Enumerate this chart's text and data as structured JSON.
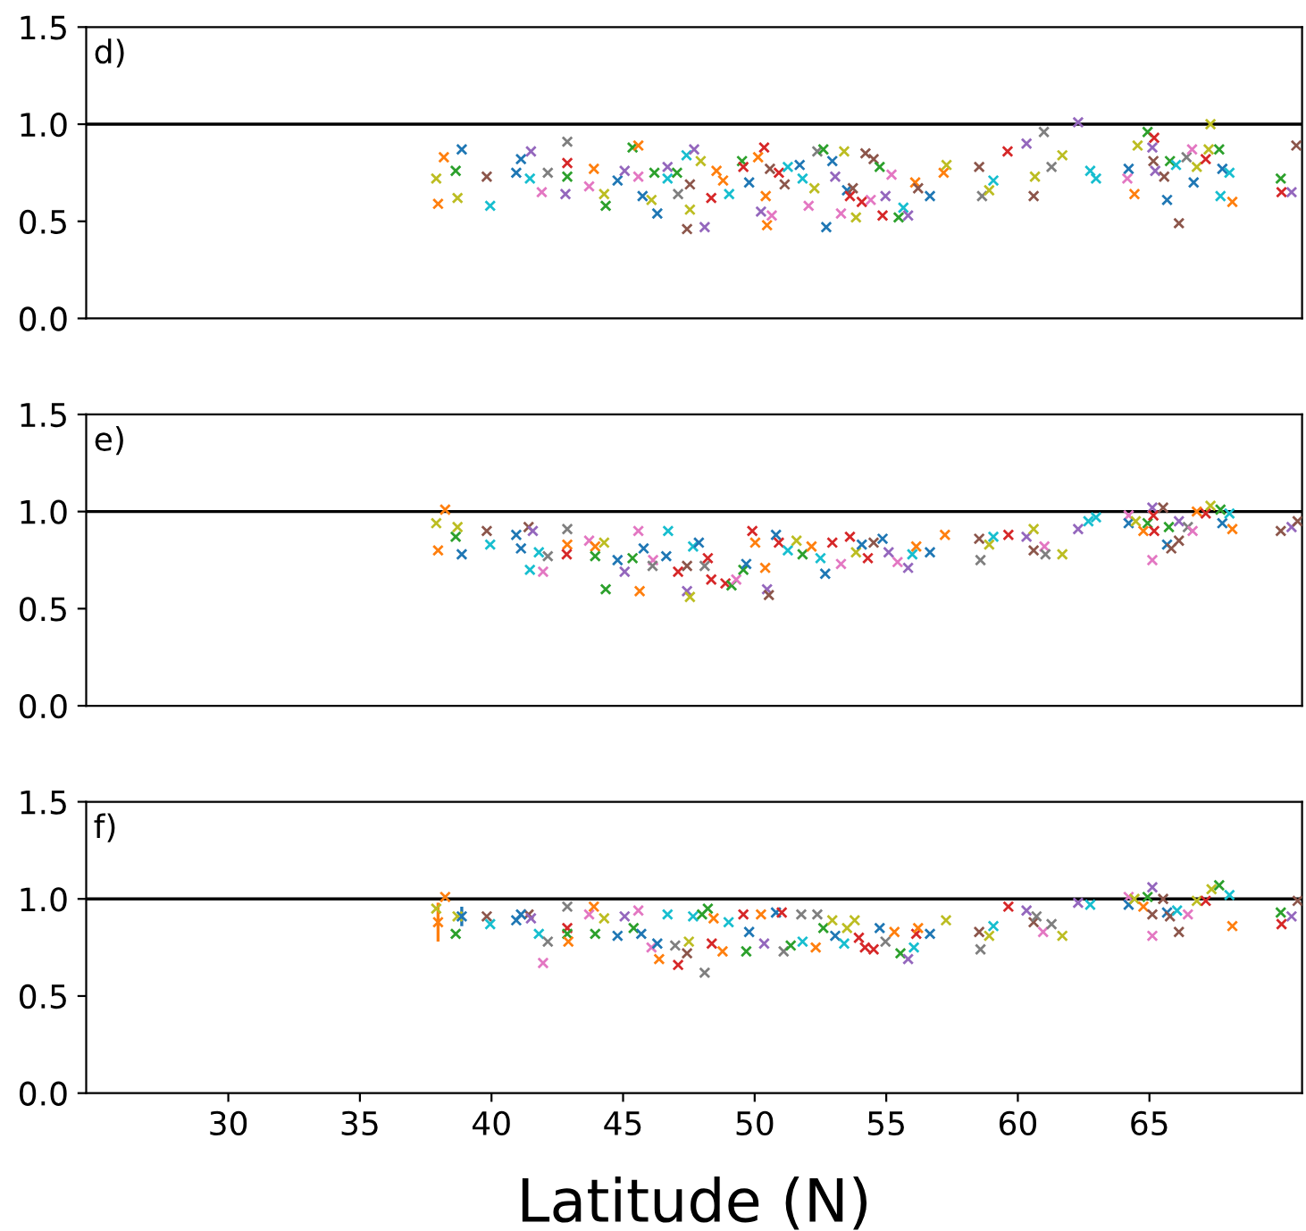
{
  "chart_data": [
    {
      "type": "scatter",
      "annotations": [
        "d)"
      ],
      "xlim": [
        24.6,
        70.8
      ],
      "ylim": [
        0,
        1.5
      ],
      "xticks": [
        30,
        35,
        40,
        45,
        50,
        55,
        60,
        65
      ],
      "yticks": [
        {
          "value": 0,
          "label": "0.0"
        },
        {
          "value": 0.5,
          "label": "0.5"
        },
        {
          "value": 1,
          "label": "1.0"
        },
        {
          "value": 1.5,
          "label": "1.5"
        }
      ],
      "tick_labels": "y",
      "marker": "cross",
      "grid": false,
      "legend": false,
      "ref_lines": [
        {
          "axis": "y",
          "value": 1,
          "color": "#000000"
        }
      ],
      "series": [
        {
          "x": [
            38.19,
            37.97,
            37.9,
            38.87,
            38.64,
            38.71,
            39.82,
            39.95,
            40.94,
            41.12,
            41.5,
            41.46,
            41.91,
            42.14,
            42.88,
            42.88,
            42.88,
            42.81,
            43.71,
            43.89,
            44.28,
            44.34,
            44.79,
            45.06,
            45.36,
            45.58,
            45.58,
            45.74,
            46.08,
            46.3,
            46.19,
            46.69,
            46.69,
            47.05,
            47.41,
            47.7,
            47.95,
            47.43,
            48.1,
            47.54,
            47.09,
            47.54,
            48.35,
            48.55,
            48.8,
            49.03,
            49.52,
            49.57,
            49.79,
            50.13,
            50.36,
            50.42,
            50.24,
            50.65,
            50.47,
            50.58,
            50.92,
            51.14,
            51.26,
            51.71,
            51.82,
            52.05,
            52.27,
            52.38,
            52.61,
            52.72,
            52.95,
            53.06,
            53.4,
            53.28,
            53.51,
            53.62,
            53.73,
            53.85,
            54.07,
            54.21,
            54.52,
            54.41,
            54.75,
            54.86,
            54.97,
            55.2,
            55.47,
            55.65,
            55.83,
            56.1,
            56.21,
            56.66,
            57.18,
            57.29,
            58.53,
            58.64,
            58.91,
            59.07,
            59.61,
            60.33,
            60.65,
            60.6,
            60.99,
            61.28,
            61.69,
            62.29,
            62.75,
            62.97,
            64.21,
            64.16,
            64.43,
            64.55,
            64.93,
            65.18,
            65.11,
            65.15,
            65.22,
            65.56,
            65.67,
            65.78,
            66.01,
            66.12,
            66.41,
            66.62,
            66.68,
            66.8,
            67.14,
            67.25,
            67.32,
            67.65,
            67.77,
            67.7,
            68.04,
            68.15,
            69.99,
            70.02,
            70.4,
            70.58
          ],
          "values": [
            0.83,
            0.59,
            0.72,
            0.87,
            0.76,
            0.62,
            0.73,
            0.58,
            0.75,
            0.82,
            0.86,
            0.72,
            0.65,
            0.75,
            0.91,
            0.8,
            0.73,
            0.64,
            0.68,
            0.77,
            0.64,
            0.58,
            0.71,
            0.76,
            0.88,
            0.89,
            0.73,
            0.63,
            0.61,
            0.54,
            0.75,
            0.78,
            0.72,
            0.75,
            0.84,
            0.87,
            0.81,
            0.46,
            0.47,
            0.56,
            0.64,
            0.69,
            0.62,
            0.76,
            0.71,
            0.64,
            0.81,
            0.78,
            0.7,
            0.83,
            0.88,
            0.63,
            0.55,
            0.53,
            0.48,
            0.77,
            0.75,
            0.69,
            0.78,
            0.79,
            0.72,
            0.58,
            0.67,
            0.86,
            0.87,
            0.47,
            0.81,
            0.73,
            0.86,
            0.54,
            0.66,
            0.63,
            0.67,
            0.52,
            0.6,
            0.85,
            0.82,
            0.61,
            0.78,
            0.53,
            0.63,
            0.74,
            0.52,
            0.57,
            0.53,
            0.7,
            0.67,
            0.63,
            0.75,
            0.79,
            0.78,
            0.63,
            0.66,
            0.71,
            0.86,
            0.9,
            0.73,
            0.63,
            0.96,
            0.78,
            0.84,
            1.01,
            0.76,
            0.72,
            0.77,
            0.72,
            0.64,
            0.89,
            0.96,
            0.93,
            0.88,
            0.81,
            0.76,
            0.73,
            0.61,
            0.81,
            0.79,
            0.49,
            0.83,
            0.87,
            0.7,
            0.78,
            0.82,
            0.87,
            1.0,
            0.87,
            0.77,
            0.63,
            0.75,
            0.6,
            0.72,
            0.65,
            0.65,
            0.89
          ],
          "colors": [
            "#ff7f0e",
            "#ff7f0e",
            "#bcbd22",
            "#1f77b4",
            "#2ca02c",
            "#bcbd22",
            "#8c564b",
            "#17becf",
            "#1f77b4",
            "#1f77b4",
            "#9467bd",
            "#17becf",
            "#e377c2",
            "#7f7f7f",
            "#7f7f7f",
            "#d62728",
            "#2ca02c",
            "#9467bd",
            "#e377c2",
            "#ff7f0e",
            "#bcbd22",
            "#2ca02c",
            "#1f77b4",
            "#9467bd",
            "#2ca02c",
            "#ff7f0e",
            "#e377c2",
            "#1f77b4",
            "#bcbd22",
            "#1f77b4",
            "#2ca02c",
            "#9467bd",
            "#17becf",
            "#2ca02c",
            "#17becf",
            "#9467bd",
            "#bcbd22",
            "#8c564b",
            "#9467bd",
            "#bcbd22",
            "#7f7f7f",
            "#8c564b",
            "#d62728",
            "#ff7f0e",
            "#ff7f0e",
            "#17becf",
            "#2ca02c",
            "#d62728",
            "#1f77b4",
            "#ff7f0e",
            "#d62728",
            "#ff7f0e",
            "#9467bd",
            "#e377c2",
            "#ff7f0e",
            "#8c564b",
            "#d62728",
            "#8c564b",
            "#17becf",
            "#1f77b4",
            "#17becf",
            "#e377c2",
            "#bcbd22",
            "#7f7f7f",
            "#2ca02c",
            "#1f77b4",
            "#1f77b4",
            "#9467bd",
            "#bcbd22",
            "#e377c2",
            "#1f77b4",
            "#d62728",
            "#8c564b",
            "#bcbd22",
            "#d62728",
            "#8c564b",
            "#8c564b",
            "#e377c2",
            "#2ca02c",
            "#d62728",
            "#9467bd",
            "#e377c2",
            "#2ca02c",
            "#17becf",
            "#9467bd",
            "#ff7f0e",
            "#8c564b",
            "#1f77b4",
            "#ff7f0e",
            "#bcbd22",
            "#8c564b",
            "#7f7f7f",
            "#bcbd22",
            "#17becf",
            "#d62728",
            "#9467bd",
            "#bcbd22",
            "#8c564b",
            "#7f7f7f",
            "#7f7f7f",
            "#bcbd22",
            "#9467bd",
            "#17becf",
            "#17becf",
            "#1f77b4",
            "#e377c2",
            "#ff7f0e",
            "#bcbd22",
            "#2ca02c",
            "#d62728",
            "#9467bd",
            "#8c564b",
            "#9467bd",
            "#8c564b",
            "#1f77b4",
            "#2ca02c",
            "#17becf",
            "#8c564b",
            "#7f7f7f",
            "#e377c2",
            "#1f77b4",
            "#bcbd22",
            "#d62728",
            "#bcbd22",
            "#bcbd22",
            "#2ca02c",
            "#1f77b4",
            "#17becf",
            "#17becf",
            "#ff7f0e",
            "#2ca02c",
            "#d62728",
            "#9467bd",
            "#8c564b"
          ]
        }
      ]
    },
    {
      "type": "scatter",
      "annotations": [
        "e)"
      ],
      "xlim": [
        24.6,
        70.8
      ],
      "ylim": [
        0,
        1.5
      ],
      "xticks": [
        30,
        35,
        40,
        45,
        50,
        55,
        60,
        65
      ],
      "yticks": [
        {
          "value": 0,
          "label": "0.0"
        },
        {
          "value": 0.5,
          "label": "0.5"
        },
        {
          "value": 1,
          "label": "1.0"
        },
        {
          "value": 1.5,
          "label": "1.5"
        }
      ],
      "tick_labels": "y",
      "marker": "cross",
      "grid": false,
      "legend": false,
      "ref_lines": [
        {
          "axis": "y",
          "value": 1,
          "color": "#000000"
        }
      ],
      "series": [
        {
          "x": [
            38.24,
            37.9,
            37.97,
            38.71,
            38.64,
            38.87,
            39.82,
            39.95,
            40.94,
            41.12,
            41.41,
            41.57,
            41.8,
            42.14,
            41.46,
            41.96,
            42.88,
            42.88,
            42.86,
            43.71,
            43.94,
            44.28,
            43.94,
            44.34,
            44.79,
            45.06,
            45.36,
            45.58,
            45.63,
            45.78,
            46.14,
            46.12,
            46.71,
            46.64,
            47.09,
            47.43,
            47.43,
            47.54,
            47.66,
            47.88,
            48.1,
            48.22,
            48.35,
            48.89,
            49.12,
            49.3,
            49.57,
            49.68,
            49.91,
            50.02,
            50.4,
            50.47,
            50.54,
            50.81,
            50.92,
            51.26,
            51.59,
            51.82,
            52.16,
            52.5,
            52.68,
            52.95,
            53.28,
            53.62,
            53.85,
            54.07,
            54.3,
            54.52,
            54.86,
            55.09,
            55.43,
            55.83,
            55.99,
            56.14,
            56.66,
            57.23,
            58.53,
            58.58,
            58.91,
            59.07,
            59.64,
            60.33,
            60.6,
            60.6,
            61.01,
            61.05,
            61.69,
            62.29,
            62.68,
            62.97,
            64.21,
            64.21,
            64.48,
            64.77,
            64.93,
            65.11,
            65.15,
            65.18,
            65.11,
            65.52,
            65.67,
            65.83,
            65.74,
            66.12,
            66.12,
            66.46,
            66.64,
            66.8,
            67.14,
            67.32,
            67.7,
            67.77,
            68.04,
            68.15,
            69.99,
            70.4,
            70.63
          ],
          "values": [
            1.01,
            0.94,
            0.8,
            0.92,
            0.87,
            0.78,
            0.9,
            0.83,
            0.88,
            0.81,
            0.92,
            0.9,
            0.79,
            0.77,
            0.7,
            0.69,
            0.91,
            0.83,
            0.78,
            0.85,
            0.82,
            0.84,
            0.77,
            0.6,
            0.75,
            0.69,
            0.76,
            0.9,
            0.59,
            0.81,
            0.75,
            0.72,
            0.9,
            0.77,
            0.69,
            0.72,
            0.59,
            0.56,
            0.82,
            0.84,
            0.72,
            0.76,
            0.65,
            0.63,
            0.62,
            0.65,
            0.7,
            0.73,
            0.9,
            0.84,
            0.71,
            0.6,
            0.57,
            0.88,
            0.84,
            0.8,
            0.85,
            0.78,
            0.82,
            0.76,
            0.68,
            0.84,
            0.73,
            0.87,
            0.79,
            0.83,
            0.76,
            0.84,
            0.86,
            0.79,
            0.74,
            0.71,
            0.78,
            0.82,
            0.79,
            0.88,
            0.86,
            0.75,
            0.83,
            0.87,
            0.88,
            0.87,
            0.91,
            0.8,
            0.82,
            0.78,
            0.78,
            0.91,
            0.95,
            0.97,
            0.98,
            0.94,
            0.95,
            0.9,
            0.94,
            1.02,
            0.98,
            0.9,
            0.75,
            1.02,
            0.83,
            0.81,
            0.92,
            0.95,
            0.85,
            0.92,
            0.9,
            1.0,
            0.99,
            1.03,
            1.01,
            0.94,
            0.99,
            0.91,
            0.9,
            0.92,
            0.95
          ],
          "colors": [
            "#ff7f0e",
            "#bcbd22",
            "#ff7f0e",
            "#bcbd22",
            "#2ca02c",
            "#1f77b4",
            "#8c564b",
            "#17becf",
            "#1f77b4",
            "#1f77b4",
            "#8c564b",
            "#9467bd",
            "#17becf",
            "#7f7f7f",
            "#17becf",
            "#e377c2",
            "#7f7f7f",
            "#ff7f0e",
            "#d62728",
            "#e377c2",
            "#ff7f0e",
            "#bcbd22",
            "#2ca02c",
            "#2ca02c",
            "#1f77b4",
            "#9467bd",
            "#2ca02c",
            "#e377c2",
            "#ff7f0e",
            "#1f77b4",
            "#e377c2",
            "#7f7f7f",
            "#17becf",
            "#1f77b4",
            "#d62728",
            "#8c564b",
            "#9467bd",
            "#bcbd22",
            "#17becf",
            "#1f77b4",
            "#7f7f7f",
            "#d62728",
            "#d62728",
            "#d62728",
            "#2ca02c",
            "#e377c2",
            "#2ca02c",
            "#1f77b4",
            "#d62728",
            "#ff7f0e",
            "#ff7f0e",
            "#9467bd",
            "#8c564b",
            "#1f77b4",
            "#d62728",
            "#17becf",
            "#bcbd22",
            "#2ca02c",
            "#ff7f0e",
            "#17becf",
            "#1f77b4",
            "#d62728",
            "#e377c2",
            "#d62728",
            "#bcbd22",
            "#1f77b4",
            "#d62728",
            "#8c564b",
            "#1f77b4",
            "#9467bd",
            "#e377c2",
            "#9467bd",
            "#17becf",
            "#ff7f0e",
            "#1f77b4",
            "#ff7f0e",
            "#8c564b",
            "#7f7f7f",
            "#bcbd22",
            "#17becf",
            "#d62728",
            "#9467bd",
            "#bcbd22",
            "#8c564b",
            "#e377c2",
            "#7f7f7f",
            "#bcbd22",
            "#9467bd",
            "#17becf",
            "#17becf",
            "#e377c2",
            "#1f77b4",
            "#bcbd22",
            "#ff7f0e",
            "#2ca02c",
            "#9467bd",
            "#d62728",
            "#d62728",
            "#e377c2",
            "#8c564b",
            "#1f77b4",
            "#8c564b",
            "#2ca02c",
            "#9467bd",
            "#8c564b",
            "#7f7f7f",
            "#e377c2",
            "#ff7f0e",
            "#d62728",
            "#bcbd22",
            "#2ca02c",
            "#1f77b4",
            "#17becf",
            "#ff7f0e",
            "#8c564b",
            "#9467bd",
            "#8c564b"
          ]
        }
      ]
    },
    {
      "type": "scatter",
      "xlabel": "Latitude (N)",
      "annotations": [
        "f)"
      ],
      "xlim": [
        24.6,
        70.8
      ],
      "ylim": [
        0,
        1.5
      ],
      "xticks": [
        30,
        35,
        40,
        45,
        50,
        55,
        60,
        65
      ],
      "yticks": [
        {
          "value": 0,
          "label": "0.0"
        },
        {
          "value": 0.5,
          "label": "0.5"
        },
        {
          "value": 1,
          "label": "1.0"
        },
        {
          "value": 1.5,
          "label": "1.5"
        }
      ],
      "marker": "cross",
      "grid": false,
      "legend": false,
      "ref_lines": [
        {
          "axis": "y",
          "value": 1,
          "color": "#000000"
        }
      ],
      "series": [
        {
          "x": [
            38.24,
            37.9,
            37.97,
            38.71,
            38.87,
            38.64,
            39.82,
            39.95,
            40.94,
            41.41,
            41.12,
            41.5,
            41.8,
            42.14,
            41.96,
            42.88,
            42.88,
            42.88,
            42.92,
            43.71,
            43.89,
            44.28,
            43.94,
            44.79,
            45.06,
            45.4,
            45.58,
            45.69,
            46.08,
            46.3,
            46.37,
            46.69,
            46.98,
            47.09,
            47.43,
            47.5,
            47.66,
            48.0,
            48.22,
            48.1,
            48.44,
            48.37,
            48.78,
            49.01,
            49.57,
            49.68,
            49.79,
            50.24,
            50.36,
            50.81,
            51.03,
            51.1,
            51.37,
            51.77,
            51.82,
            52.32,
            52.38,
            52.61,
            52.95,
            53.06,
            53.4,
            53.51,
            53.8,
            53.96,
            54.19,
            54.52,
            54.75,
            54.97,
            55.31,
            55.54,
            55.83,
            56.05,
            56.14,
            56.21,
            56.66,
            57.27,
            59.64,
            60.33,
            60.6,
            60.71,
            60.96,
            61.28,
            61.69,
            58.53,
            58.58,
            58.91,
            59.07,
            62.29,
            62.75,
            64.21,
            64.21,
            64.43,
            64.77,
            64.93,
            65.11,
            65.11,
            65.11,
            65.52,
            65.67,
            65.78,
            66.12,
            66.05,
            66.46,
            66.8,
            67.14,
            67.36,
            67.65,
            68.04,
            68.15,
            69.99,
            70.02,
            70.4,
            70.63
          ],
          "values": [
            1.01,
            0.95,
            0.88,
            0.91,
            0.91,
            0.82,
            0.91,
            0.87,
            0.89,
            0.92,
            0.92,
            0.9,
            0.82,
            0.78,
            0.67,
            0.96,
            0.85,
            0.82,
            0.78,
            0.92,
            0.96,
            0.9,
            0.82,
            0.81,
            0.91,
            0.85,
            0.94,
            0.82,
            0.75,
            0.77,
            0.69,
            0.92,
            0.76,
            0.66,
            0.72,
            0.78,
            0.91,
            0.92,
            0.95,
            0.62,
            0.9,
            0.77,
            0.73,
            0.88,
            0.92,
            0.73,
            0.83,
            0.92,
            0.77,
            0.93,
            0.93,
            0.73,
            0.76,
            0.92,
            0.78,
            0.75,
            0.92,
            0.85,
            0.89,
            0.81,
            0.77,
            0.85,
            0.89,
            0.8,
            0.75,
            0.74,
            0.85,
            0.78,
            0.83,
            0.72,
            0.69,
            0.75,
            0.82,
            0.85,
            0.82,
            0.89,
            0.96,
            0.94,
            0.88,
            0.91,
            0.83,
            0.87,
            0.81,
            0.83,
            0.74,
            0.81,
            0.86,
            0.98,
            0.97,
            1.01,
            0.97,
            1.0,
            0.96,
            1.01,
            1.06,
            0.92,
            0.81,
            1.0,
            0.93,
            0.91,
            0.83,
            0.94,
            0.92,
            0.99,
            0.99,
            1.05,
            1.07,
            1.02,
            0.86,
            0.93,
            0.87,
            0.91,
            0.99
          ],
          "errors": [
            null,
            null,
            0.1,
            null,
            0.05,
            null,
            null,
            null,
            null,
            null,
            null,
            null,
            null,
            null,
            null,
            null,
            null,
            null,
            null,
            null,
            null,
            null,
            null,
            null,
            null,
            null,
            null,
            null,
            null,
            null,
            null,
            null,
            null,
            null,
            null,
            null,
            null,
            null,
            null,
            null,
            null,
            null,
            null,
            null,
            null,
            null,
            null,
            null,
            null,
            null,
            null,
            null,
            null,
            null,
            null,
            null,
            null,
            null,
            null,
            null,
            null,
            null,
            null,
            null,
            null,
            null,
            null,
            null,
            null,
            null,
            null,
            null,
            null,
            null,
            null,
            null,
            null,
            null,
            null,
            null,
            null,
            null,
            null,
            null,
            null,
            null,
            null,
            null,
            null,
            null,
            null,
            null,
            null,
            null,
            null,
            null,
            null,
            null,
            null,
            null,
            null,
            null,
            null,
            null,
            null,
            null,
            null,
            null,
            null,
            null,
            null,
            null,
            null
          ],
          "colors": [
            "#ff7f0e",
            "#bcbd22",
            "#ff7f0e",
            "#bcbd22",
            "#1f77b4",
            "#2ca02c",
            "#8c564b",
            "#17becf",
            "#1f77b4",
            "#8c564b",
            "#1f77b4",
            "#9467bd",
            "#17becf",
            "#7f7f7f",
            "#e377c2",
            "#7f7f7f",
            "#d62728",
            "#2ca02c",
            "#ff7f0e",
            "#e377c2",
            "#ff7f0e",
            "#bcbd22",
            "#2ca02c",
            "#1f77b4",
            "#9467bd",
            "#2ca02c",
            "#e377c2",
            "#1f77b4",
            "#e377c2",
            "#1f77b4",
            "#ff7f0e",
            "#17becf",
            "#7f7f7f",
            "#d62728",
            "#8c564b",
            "#bcbd22",
            "#17becf",
            "#2ca02c",
            "#2ca02c",
            "#7f7f7f",
            "#ff7f0e",
            "#d62728",
            "#ff7f0e",
            "#17becf",
            "#d62728",
            "#2ca02c",
            "#1f77b4",
            "#ff7f0e",
            "#9467bd",
            "#1f77b4",
            "#d62728",
            "#7f7f7f",
            "#2ca02c",
            "#7f7f7f",
            "#17becf",
            "#ff7f0e",
            "#7f7f7f",
            "#2ca02c",
            "#bcbd22",
            "#1f77b4",
            "#17becf",
            "#bcbd22",
            "#bcbd22",
            "#d62728",
            "#d62728",
            "#d62728",
            "#1f77b4",
            "#7f7f7f",
            "#ff7f0e",
            "#2ca02c",
            "#9467bd",
            "#17becf",
            "#d62728",
            "#ff7f0e",
            "#1f77b4",
            "#bcbd22",
            "#d62728",
            "#9467bd",
            "#8c564b",
            "#7f7f7f",
            "#e377c2",
            "#7f7f7f",
            "#bcbd22",
            "#8c564b",
            "#7f7f7f",
            "#bcbd22",
            "#17becf",
            "#9467bd",
            "#17becf",
            "#e377c2",
            "#1f77b4",
            "#bcbd22",
            "#ff7f0e",
            "#2ca02c",
            "#9467bd",
            "#8c564b",
            "#e377c2",
            "#8c564b",
            "#1f77b4",
            "#8c564b",
            "#8c564b",
            "#17becf",
            "#e377c2",
            "#bcbd22",
            "#d62728",
            "#bcbd22",
            "#2ca02c",
            "#17becf",
            "#ff7f0e",
            "#2ca02c",
            "#d62728",
            "#9467bd",
            "#8c564b"
          ]
        }
      ]
    }
  ]
}
